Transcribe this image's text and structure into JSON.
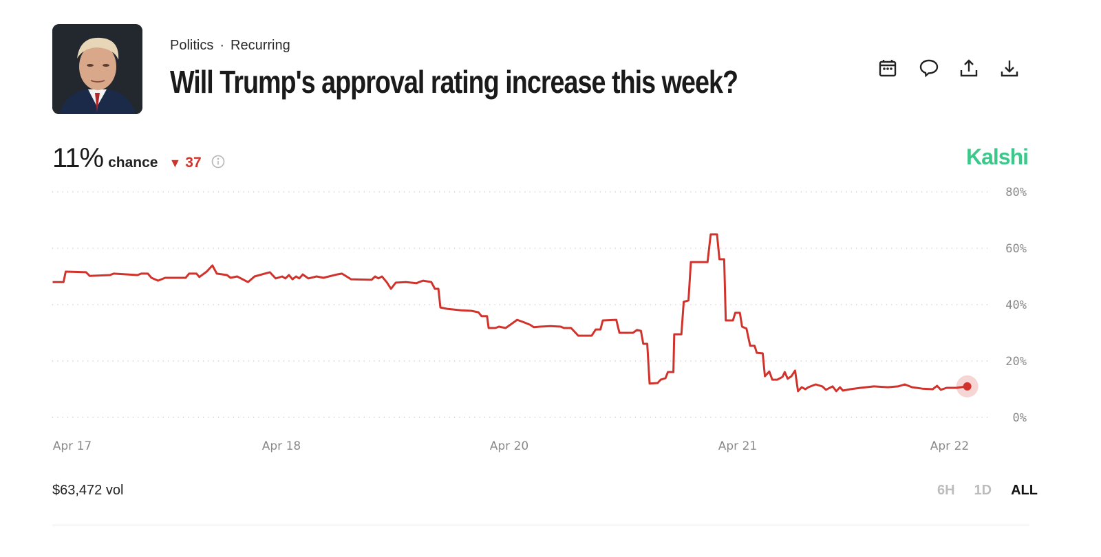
{
  "header": {
    "category": "Politics",
    "separator": "·",
    "tag": "Recurring",
    "title": "Will Trump's approval rating increase this week?",
    "icons": [
      "calendar-icon",
      "comment-icon",
      "share-icon",
      "download-icon"
    ]
  },
  "summary": {
    "chance_value": "11%",
    "chance_label": "chance",
    "change_direction": "down",
    "change_value": "37",
    "brand": "Kalshi"
  },
  "footer": {
    "volume": "$63,472 vol",
    "ranges": [
      "6H",
      "1D",
      "ALL"
    ],
    "active_range": "ALL"
  },
  "colors": {
    "line": "#d0332b",
    "brand": "#3cc88a",
    "down": "#d0332b"
  },
  "chart_data": {
    "type": "line",
    "title": "",
    "xlabel": "",
    "ylabel": "",
    "x_ticks": [
      "Apr 17",
      "Apr 18",
      "Apr 20",
      "Apr 21",
      "Apr 22"
    ],
    "y_ticks": [
      "0%",
      "20%",
      "40%",
      "60%",
      "80%"
    ],
    "ylim": [
      0,
      80
    ],
    "grid": "horizontal dotted",
    "y_axis_side": "right",
    "series": [
      {
        "color": "#d0332b",
        "points": [
          [
            "04-16 21:45",
            48.0
          ],
          [
            "04-16 23:00",
            48.0
          ],
          [
            "04-16 23:15",
            51.7
          ],
          [
            "04-17 01:35",
            51.5
          ],
          [
            "04-17 02:00",
            50.2
          ],
          [
            "04-17 04:20",
            50.5
          ],
          [
            "04-17 04:45",
            51.0
          ],
          [
            "04-17 07:30",
            50.5
          ],
          [
            "04-17 07:55",
            51.0
          ],
          [
            "04-17 08:40",
            51.0
          ],
          [
            "04-17 09:05",
            49.5
          ],
          [
            "04-17 09:50",
            48.5
          ],
          [
            "04-17 10:40",
            49.5
          ],
          [
            "04-17 13:00",
            49.5
          ],
          [
            "04-17 13:25",
            51.0
          ],
          [
            "04-17 14:15",
            51.0
          ],
          [
            "04-17 14:35",
            49.8
          ],
          [
            "04-17 15:25",
            51.7
          ],
          [
            "04-17 16:05",
            53.9
          ],
          [
            "04-17 16:35",
            51.0
          ],
          [
            "04-17 17:45",
            50.5
          ],
          [
            "04-17 18:10",
            49.5
          ],
          [
            "04-17 18:55",
            50.0
          ],
          [
            "04-17 20:10",
            48.0
          ],
          [
            "04-17 20:55",
            50.0
          ],
          [
            "04-17 22:40",
            51.5
          ],
          [
            "04-17 23:20",
            49.3
          ],
          [
            "04-18 00:10",
            50.0
          ],
          [
            "04-18 00:50",
            49.3
          ],
          [
            "04-18 01:35",
            50.5
          ],
          [
            "04-18 02:20",
            49.0
          ],
          [
            "04-18 03:05",
            50.0
          ],
          [
            "04-18 03:45",
            49.3
          ],
          [
            "04-18 04:30",
            50.7
          ],
          [
            "04-18 05:40",
            49.3
          ],
          [
            "04-18 07:25",
            50.0
          ],
          [
            "04-18 08:50",
            49.5
          ],
          [
            "04-18 11:45",
            50.7
          ],
          [
            "04-18 12:45",
            51.0
          ],
          [
            "04-18 14:40",
            49.0
          ],
          [
            "04-18 19:00",
            48.8
          ],
          [
            "04-18 19:45",
            50.0
          ],
          [
            "04-18 20:25",
            49.3
          ],
          [
            "04-18 21:10",
            50.0
          ],
          [
            "04-18 22:10",
            48.0
          ],
          [
            "04-18 23:05",
            45.6
          ],
          [
            "04-19 00:05",
            47.8
          ],
          [
            "04-19 02:15",
            48.0
          ],
          [
            "04-19 04:25",
            47.6
          ],
          [
            "04-19 05:50",
            48.5
          ],
          [
            "04-19 07:35",
            48.0
          ],
          [
            "04-19 08:20",
            45.6
          ],
          [
            "04-19 09:05",
            45.6
          ],
          [
            "04-19 09:30",
            39.0
          ],
          [
            "04-19 10:55",
            38.5
          ],
          [
            "04-19 13:50",
            38.0
          ],
          [
            "04-19 16:00",
            37.8
          ],
          [
            "04-19 17:30",
            37.3
          ],
          [
            "04-19 18:10",
            35.9
          ],
          [
            "04-19 19:20",
            35.9
          ],
          [
            "04-19 19:40",
            31.7
          ],
          [
            "04-19 21:05",
            31.7
          ],
          [
            "04-19 21:50",
            32.2
          ],
          [
            "04-19 23:15",
            31.7
          ],
          [
            "04-20 00:20",
            33.4
          ],
          [
            "04-20 00:50",
            34.6
          ],
          [
            "04-20 01:25",
            33.9
          ],
          [
            "04-20 02:10",
            32.9
          ],
          [
            "04-20 02:35",
            32.0
          ],
          [
            "04-20 03:15",
            32.2
          ],
          [
            "04-20 04:20",
            32.4
          ],
          [
            "04-20 05:25",
            32.2
          ],
          [
            "04-20 05:45",
            31.7
          ],
          [
            "04-20 06:30",
            31.7
          ],
          [
            "04-20 06:50",
            30.5
          ],
          [
            "04-20 07:15",
            29.0
          ],
          [
            "04-20 08:40",
            29.0
          ],
          [
            "04-20 09:05",
            31.2
          ],
          [
            "04-20 09:35",
            31.2
          ],
          [
            "04-20 09:50",
            34.4
          ],
          [
            "04-20 11:15",
            34.6
          ],
          [
            "04-20 11:35",
            30.0
          ],
          [
            "04-20 13:00",
            30.0
          ],
          [
            "04-20 13:25",
            31.0
          ],
          [
            "04-20 13:50",
            30.7
          ],
          [
            "04-20 14:05",
            26.1
          ],
          [
            "04-20 14:30",
            26.1
          ],
          [
            "04-20 14:45",
            12.0
          ],
          [
            "04-20 15:35",
            12.2
          ],
          [
            "04-20 15:55",
            13.4
          ],
          [
            "04-20 16:25",
            13.9
          ],
          [
            "04-20 16:40",
            16.1
          ],
          [
            "04-20 17:15",
            16.1
          ],
          [
            "04-20 17:20",
            29.5
          ],
          [
            "04-20 18:05",
            29.5
          ],
          [
            "04-20 18:20",
            41.0
          ],
          [
            "04-20 18:50",
            41.5
          ],
          [
            "04-20 19:05",
            55.1
          ],
          [
            "04-20 20:50",
            55.1
          ],
          [
            "04-20 21:10",
            64.9
          ],
          [
            "04-20 21:50",
            64.9
          ],
          [
            "04-20 22:05",
            56.1
          ],
          [
            "04-20 22:35",
            56.1
          ],
          [
            "04-20 22:45",
            34.4
          ],
          [
            "04-20 23:30",
            34.4
          ],
          [
            "04-20 23:45",
            37.1
          ],
          [
            "04-21 00:15",
            37.1
          ],
          [
            "04-21 00:30",
            32.2
          ],
          [
            "04-21 01:00",
            31.5
          ],
          [
            "04-21 01:25",
            25.4
          ],
          [
            "04-21 01:55",
            25.4
          ],
          [
            "04-21 02:10",
            22.9
          ],
          [
            "04-21 02:50",
            22.7
          ],
          [
            "04-21 03:05",
            14.6
          ],
          [
            "04-21 03:35",
            16.3
          ],
          [
            "04-21 03:55",
            13.4
          ],
          [
            "04-21 04:30",
            13.4
          ],
          [
            "04-21 05:05",
            14.4
          ],
          [
            "04-21 05:20",
            16.1
          ],
          [
            "04-21 05:40",
            13.7
          ],
          [
            "04-21 06:05",
            14.6
          ],
          [
            "04-21 06:30",
            16.6
          ],
          [
            "04-21 06:50",
            9.3
          ],
          [
            "04-21 07:15",
            10.7
          ],
          [
            "04-21 07:40",
            10.0
          ],
          [
            "04-21 08:00",
            10.7
          ],
          [
            "04-21 08:50",
            11.7
          ],
          [
            "04-21 09:35",
            11.0
          ],
          [
            "04-21 10:00",
            9.8
          ],
          [
            "04-21 10:45",
            11.0
          ],
          [
            "04-21 11:10",
            9.3
          ],
          [
            "04-21 11:35",
            10.7
          ],
          [
            "04-21 11:55",
            9.5
          ],
          [
            "04-21 12:45",
            10.0
          ],
          [
            "04-21 13:55",
            10.5
          ],
          [
            "04-21 15:25",
            11.0
          ],
          [
            "04-21 17:00",
            10.7
          ],
          [
            "04-21 18:10",
            11.0
          ],
          [
            "04-21 18:55",
            11.7
          ],
          [
            "04-21 19:45",
            10.7
          ],
          [
            "04-21 20:55",
            10.2
          ],
          [
            "04-21 22:05",
            10.0
          ],
          [
            "04-21 22:35",
            11.2
          ],
          [
            "04-21 23:00",
            9.8
          ],
          [
            "04-21 23:40",
            10.5
          ],
          [
            "04-22 00:45",
            10.5
          ],
          [
            "04-22 02:00",
            11.0
          ]
        ]
      }
    ]
  }
}
